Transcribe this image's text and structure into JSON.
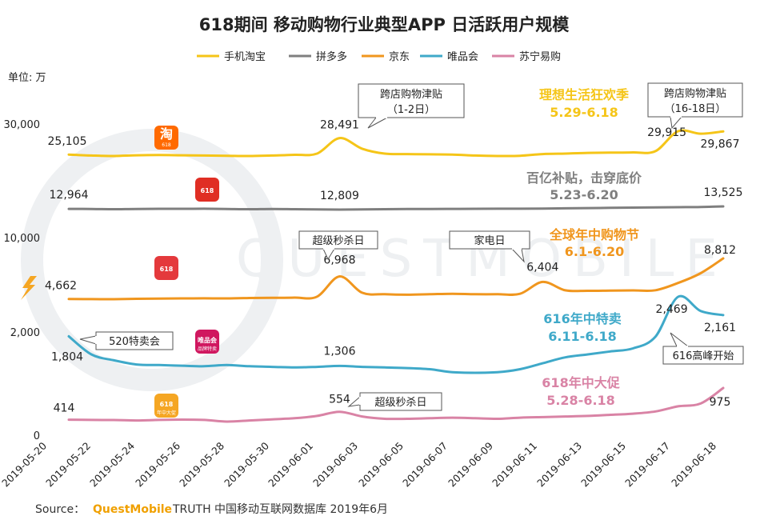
{
  "chart_data": {
    "type": "line",
    "title": "618期间 移动购物行业典型APP 日活跃用户规模",
    "unit_label": "单位: 万",
    "y_ticks": [
      "30,000",
      "10,000",
      "2,000",
      "0"
    ],
    "categories": [
      "2019-05-20",
      "2019-05-21",
      "2019-05-22",
      "2019-05-23",
      "2019-05-24",
      "2019-05-25",
      "2019-05-26",
      "2019-05-27",
      "2019-05-28",
      "2019-05-29",
      "2019-05-30",
      "2019-05-31",
      "2019-06-01",
      "2019-06-02",
      "2019-06-03",
      "2019-06-04",
      "2019-06-05",
      "2019-06-06",
      "2019-06-07",
      "2019-06-08",
      "2019-06-09",
      "2019-06-10",
      "2019-06-11",
      "2019-06-12",
      "2019-06-13",
      "2019-06-14",
      "2019-06-15",
      "2019-06-16",
      "2019-06-17",
      "2019-06-18"
    ],
    "x_tick_labels": [
      "2019-05-20",
      "2019-05-22",
      "2019-05-24",
      "2019-05-26",
      "2019-05-28",
      "2019-05-30",
      "2019-06-01",
      "2019-06-03",
      "2019-06-05",
      "2019-06-07",
      "2019-06-09",
      "2019-06-11",
      "2019-06-13",
      "2019-06-15",
      "2019-06-17",
      "2019-06-18"
    ],
    "series": [
      {
        "name": "手机淘宝",
        "color": "#f5c518",
        "values": [
          25105,
          24900,
          24800,
          24950,
          25000,
          24950,
          24900,
          24850,
          24800,
          24900,
          25050,
          25300,
          28491,
          26300,
          25300,
          25200,
          25150,
          25100,
          24900,
          24800,
          24850,
          25200,
          25300,
          25450,
          25500,
          25550,
          25800,
          29915,
          29400,
          29867
        ]
      },
      {
        "name": "拼多多",
        "color": "#7f7f7f",
        "values": [
          12964,
          12950,
          12900,
          12960,
          12980,
          12990,
          13000,
          12950,
          12900,
          12950,
          12900,
          12850,
          12809,
          12850,
          12900,
          12950,
          12960,
          12970,
          12980,
          13000,
          13010,
          13050,
          13100,
          13150,
          13200,
          13250,
          13300,
          13350,
          13400,
          13525
        ]
      },
      {
        "name": "京东",
        "color": "#f0961e",
        "values": [
          4662,
          4650,
          4640,
          4680,
          4700,
          4720,
          4730,
          4720,
          4760,
          4780,
          4800,
          4900,
          6968,
          5300,
          5150,
          5100,
          5150,
          5200,
          5150,
          5150,
          5200,
          6404,
          5550,
          5500,
          5520,
          5540,
          5560,
          6300,
          7300,
          8812
        ]
      },
      {
        "name": "唯品会",
        "color": "#3fa9c9",
        "values": [
          1804,
          1500,
          1400,
          1330,
          1320,
          1310,
          1300,
          1320,
          1300,
          1290,
          1280,
          1290,
          1306,
          1290,
          1280,
          1270,
          1250,
          1200,
          1190,
          1200,
          1250,
          1350,
          1450,
          1500,
          1550,
          1600,
          1800,
          2469,
          2230,
          2161
        ]
      },
      {
        "name": "苏宁易购",
        "color": "#d983a5",
        "values": [
          414,
          410,
          408,
          400,
          410,
          415,
          410,
          380,
          400,
          420,
          440,
          480,
          554,
          470,
          430,
          430,
          440,
          450,
          440,
          430,
          450,
          460,
          470,
          480,
          500,
          520,
          560,
          650,
          700,
          975
        ]
      }
    ],
    "data_labels": [
      {
        "series": "手机淘宝",
        "x": "2019-05-20",
        "text": "25,105"
      },
      {
        "series": "手机淘宝",
        "x": "2019-06-01",
        "text": "28,491"
      },
      {
        "series": "手机淘宝",
        "x": "2019-06-16",
        "text": "29,915"
      },
      {
        "series": "手机淘宝",
        "x": "2019-06-18",
        "text": "29,867"
      },
      {
        "series": "拼多多",
        "x": "2019-05-20",
        "text": "12,964"
      },
      {
        "series": "拼多多",
        "x": "2019-06-01",
        "text": "12,809"
      },
      {
        "series": "拼多多",
        "x": "2019-06-18",
        "text": "13,525"
      },
      {
        "series": "京东",
        "x": "2019-05-20",
        "text": "4,662"
      },
      {
        "series": "京东",
        "x": "2019-06-01",
        "text": "6,968"
      },
      {
        "series": "京东",
        "x": "2019-06-10",
        "text": "6,404"
      },
      {
        "series": "京东",
        "x": "2019-06-18",
        "text": "8,812"
      },
      {
        "series": "唯品会",
        "x": "2019-05-20",
        "text": "1,804"
      },
      {
        "series": "唯品会",
        "x": "2019-06-01",
        "text": "1,306"
      },
      {
        "series": "唯品会",
        "x": "2019-06-16",
        "text": "2,469"
      },
      {
        "series": "唯品会",
        "x": "2019-06-18",
        "text": "2,161"
      },
      {
        "series": "苏宁易购",
        "x": "2019-05-20",
        "text": "414"
      },
      {
        "series": "苏宁易购",
        "x": "2019-06-01",
        "text": "554"
      },
      {
        "series": "苏宁易购",
        "x": "2019-06-18",
        "text": "975"
      }
    ],
    "callouts": [
      {
        "text1": "跨店购物津贴",
        "text2": "（1-2日）"
      },
      {
        "text1": "跨店购物津贴",
        "text2": "（16-18日）"
      },
      {
        "text1": "超级秒杀日",
        "text2": ""
      },
      {
        "text1": "家电日",
        "text2": ""
      },
      {
        "text1": "520特卖会",
        "text2": ""
      },
      {
        "text1": "616高峰开始",
        "text2": ""
      },
      {
        "text1": "超级秒杀日",
        "text2": ""
      }
    ],
    "campaigns": [
      {
        "name": "理想生活狂欢季",
        "dates": "5.29-6.18",
        "color": "#f5c518"
      },
      {
        "name": "百亿补贴，击穿底价",
        "dates": "5.23-6.20",
        "color": "#7f7f7f"
      },
      {
        "name": "全球年中购物节",
        "dates": "6.1-6.20",
        "color": "#f0961e"
      },
      {
        "name": "616年中特卖",
        "dates": "6.11-6.18",
        "color": "#3fa9c9"
      },
      {
        "name": "618年中大促",
        "dates": "5.28-6.18",
        "color": "#d983a5"
      }
    ],
    "app_icons": [
      {
        "name": "taobao-icon",
        "glyph": "淘",
        "sub": "618",
        "color": "#ff6a00"
      },
      {
        "name": "pinduoduo-icon",
        "glyph": "618",
        "sub": "",
        "color": "#e02e24"
      },
      {
        "name": "jd-icon",
        "glyph": "618",
        "sub": "",
        "color": "#e4393c"
      },
      {
        "name": "vipshop-icon",
        "glyph": "唯品会",
        "sub": "品牌特卖",
        "color": "#d0175f"
      },
      {
        "name": "suning-icon",
        "glyph": "618",
        "sub": "年中大促",
        "color": "#f5a623"
      }
    ],
    "source": {
      "prefix": "Source：",
      "brand": "QuestMobile",
      "rest": "TRUTH 中国移动互联网数据库 2019年6月"
    },
    "watermark": "QUESTMOBILE"
  }
}
